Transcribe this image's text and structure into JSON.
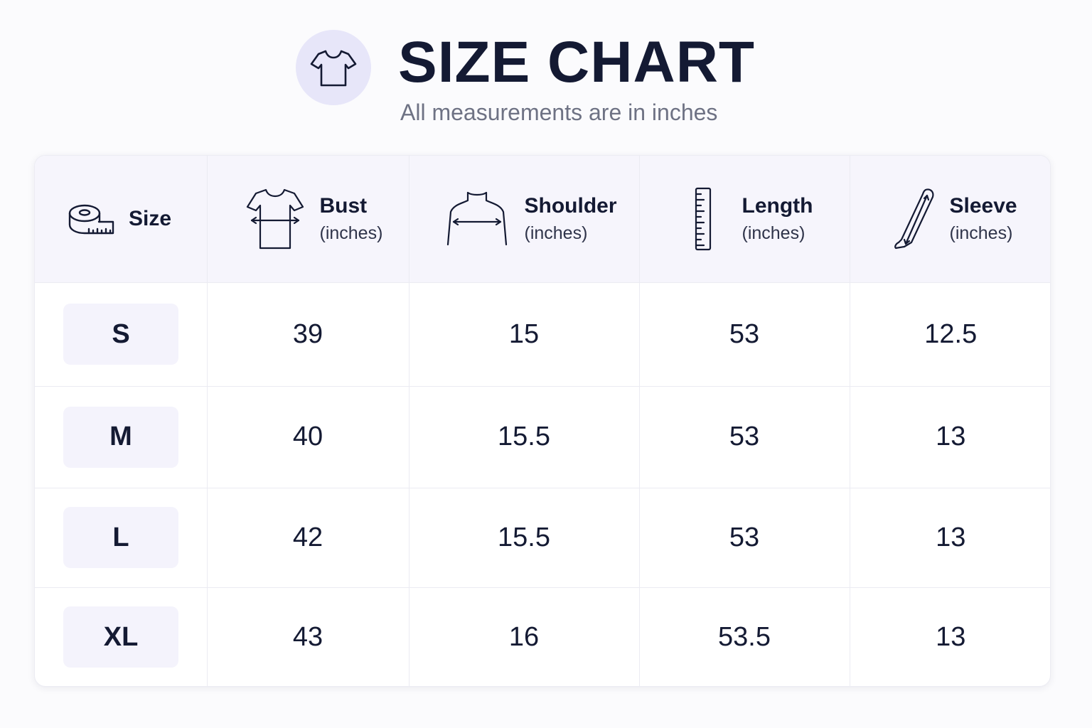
{
  "header": {
    "title": "SIZE CHART",
    "subtitle": "All measurements are in inches",
    "logo_icon": "tshirt-icon"
  },
  "table": {
    "columns": [
      {
        "key": "size",
        "label": "Size",
        "unit": "",
        "icon": "measuring-tape-icon"
      },
      {
        "key": "bust",
        "label": "Bust",
        "unit": "(inches)",
        "icon": "tshirt-bust-icon"
      },
      {
        "key": "shoulder",
        "label": "Shoulder",
        "unit": "(inches)",
        "icon": "shoulder-icon"
      },
      {
        "key": "length",
        "label": "Length",
        "unit": "(inches)",
        "icon": "ruler-icon"
      },
      {
        "key": "sleeve",
        "label": "Sleeve",
        "unit": "(inches)",
        "icon": "sleeve-icon"
      }
    ],
    "rows": [
      {
        "size": "S",
        "bust": "39",
        "shoulder": "15",
        "length": "53",
        "sleeve": "12.5"
      },
      {
        "size": "M",
        "bust": "40",
        "shoulder": "15.5",
        "length": "53",
        "sleeve": "13"
      },
      {
        "size": "L",
        "bust": "42",
        "shoulder": "15.5",
        "length": "53",
        "sleeve": "13"
      },
      {
        "size": "XL",
        "bust": "43",
        "shoulder": "16",
        "length": "53.5",
        "sleeve": "13"
      }
    ]
  },
  "colors": {
    "text": "#141a33",
    "subtitle": "#6e7284",
    "header_bg": "#f6f5fc",
    "logo_circle": "#e7e6f9",
    "badge_bg": "#f4f3fc"
  }
}
